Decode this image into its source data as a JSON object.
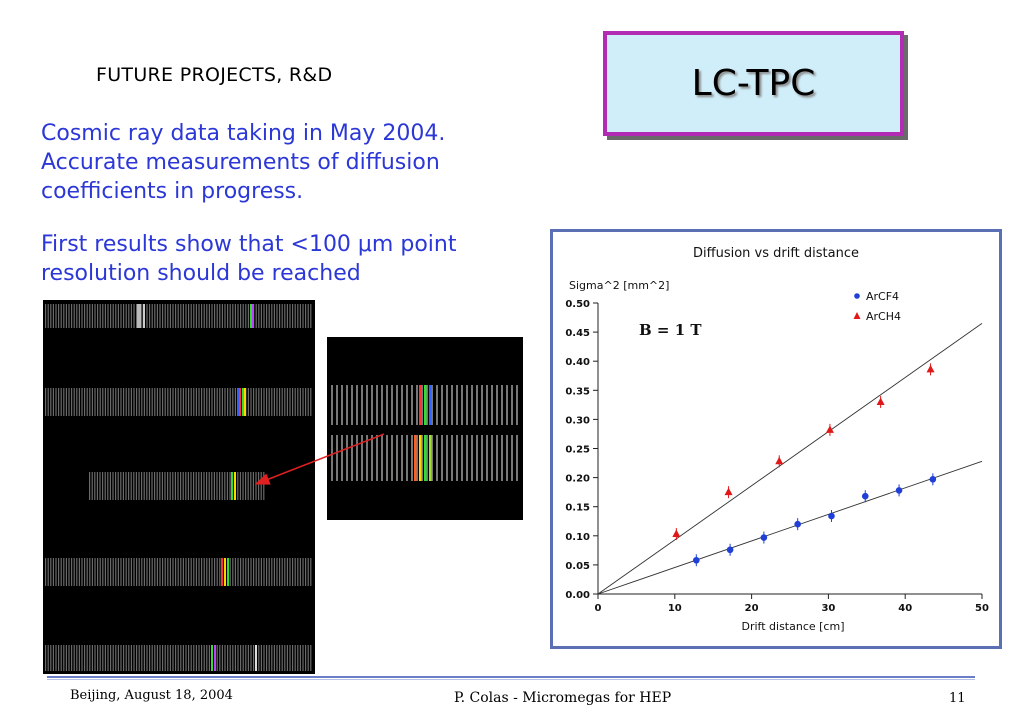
{
  "slide": {
    "section_heading": "FUTURE PROJECTS, R&D",
    "title": "LC-TPC",
    "paragraph_1": "Cosmic ray data taking in May 2004. Accurate measurements of diffusion coefficients in progress.",
    "paragraph_2": "First results show that <100 μm point resolution should be reached"
  },
  "footer": {
    "left": "Beijing, August 18, 2004",
    "center": "P. Colas - Micromegas for HEP",
    "right": "11"
  },
  "colors": {
    "title_box_fill": "#cfeefa",
    "title_box_border": "#b12bb5",
    "text_blue": "#2b37d6",
    "series_arcf4": "#1f3fd6",
    "series_arch4": "#e01818",
    "arrow": "#e02020"
  },
  "event_display": {
    "description_icon": "pad-hit-display",
    "hit_colors": [
      "#ff3030",
      "#ffd800",
      "#30e030",
      "#3060ff",
      "#c040ff",
      "#ff8020"
    ]
  },
  "chart_data": {
    "type": "scatter",
    "title": "Diffusion vs drift distance",
    "ylabel": "Sigma^2 [mm^2]",
    "xlabel": "Drift distance [cm]",
    "annotation": "B = 1 T",
    "xlim": [
      0,
      50
    ],
    "ylim": [
      0,
      0.5
    ],
    "x_ticks": [
      0,
      10,
      20,
      30,
      40,
      50
    ],
    "y_ticks": [
      "0.00",
      "0.05",
      "0.10",
      "0.15",
      "0.20",
      "0.25",
      "0.30",
      "0.35",
      "0.40",
      "0.45",
      "0.50"
    ],
    "legend_position": "top-right",
    "grid": false,
    "series": [
      {
        "name": "ArCF4",
        "marker": "circle",
        "points": [
          [
            12.8,
            0.058
          ],
          [
            17.2,
            0.076
          ],
          [
            21.6,
            0.097
          ],
          [
            26.0,
            0.12
          ],
          [
            30.4,
            0.134
          ],
          [
            34.8,
            0.168
          ],
          [
            39.2,
            0.178
          ],
          [
            43.6,
            0.197
          ]
        ],
        "fit": [
          [
            0,
            0.0
          ],
          [
            50,
            0.228
          ]
        ]
      },
      {
        "name": "ArCH4",
        "marker": "triangle",
        "points": [
          [
            10.2,
            0.103
          ],
          [
            17.0,
            0.175
          ],
          [
            23.6,
            0.228
          ],
          [
            30.2,
            0.282
          ],
          [
            36.8,
            0.33
          ],
          [
            43.3,
            0.386
          ]
        ],
        "fit": [
          [
            0,
            0.0
          ],
          [
            50,
            0.465
          ]
        ]
      }
    ]
  }
}
